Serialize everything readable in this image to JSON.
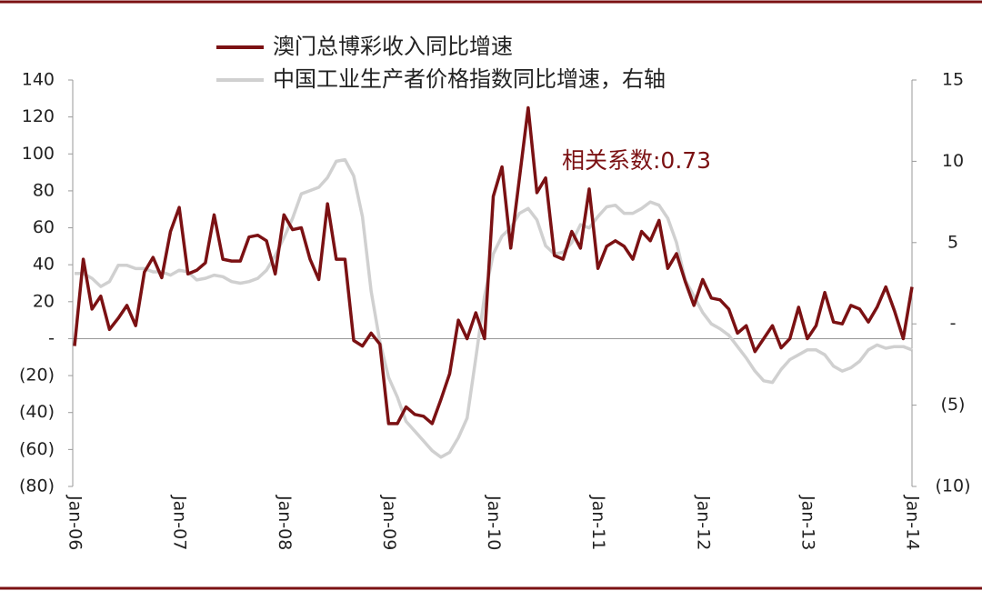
{
  "chart_data": {
    "type": "line",
    "annotation": "相关系数:0.73",
    "categories": [
      "Jan-06",
      null,
      null,
      null,
      null,
      null,
      null,
      null,
      null,
      null,
      null,
      null,
      "Jan-07",
      null,
      null,
      null,
      null,
      null,
      null,
      null,
      null,
      null,
      null,
      null,
      "Jan-08",
      null,
      null,
      null,
      null,
      null,
      null,
      null,
      null,
      null,
      null,
      null,
      "Jan-09",
      null,
      null,
      null,
      null,
      null,
      null,
      null,
      null,
      null,
      null,
      null,
      "Jan-10",
      null,
      null,
      null,
      null,
      null,
      null,
      null,
      null,
      null,
      null,
      null,
      "Jan-11",
      null,
      null,
      null,
      null,
      null,
      null,
      null,
      null,
      null,
      null,
      null,
      "Jan-12",
      null,
      null,
      null,
      null,
      null,
      null,
      null,
      null,
      null,
      null,
      null,
      "Jan-13",
      null,
      null,
      null,
      null,
      null,
      null,
      null,
      null,
      null,
      null,
      null,
      "Jan-14"
    ],
    "series": [
      {
        "name": "澳门总博彩收入同比增速",
        "color": "#7b1113",
        "axis": "y",
        "values": [
          -4,
          43,
          16,
          23,
          5,
          11,
          18,
          7,
          36,
          44,
          33,
          58,
          71,
          35,
          37,
          41,
          67,
          43,
          42,
          42,
          55,
          56,
          53,
          35,
          67,
          59,
          60,
          43,
          32,
          73,
          43,
          43,
          -1,
          -4,
          3,
          -3,
          -46,
          -46,
          -37,
          -41,
          -42,
          -46,
          -33,
          -19,
          10,
          0,
          14,
          0,
          77,
          93,
          49,
          87,
          125,
          79,
          87,
          45,
          43,
          58,
          49,
          81,
          38,
          50,
          53,
          50,
          43,
          58,
          53,
          64,
          38,
          46,
          31,
          18,
          32,
          22,
          21,
          16,
          3,
          7,
          -7,
          0,
          7,
          -5,
          0,
          17,
          0,
          7,
          25,
          9,
          8,
          18,
          16,
          9,
          17,
          28,
          15,
          0,
          28
        ]
      },
      {
        "name": "中国工业生产者价格指数同比增速，右轴",
        "color": "#d0d0d0",
        "axis": "y2",
        "values": [
          3.1,
          3.1,
          2.8,
          2.3,
          2.6,
          3.6,
          3.6,
          3.4,
          3.4,
          3.2,
          3.2,
          3.0,
          3.3,
          3.2,
          2.7,
          2.8,
          3.0,
          2.9,
          2.6,
          2.5,
          2.6,
          2.8,
          3.3,
          4.2,
          5.3,
          6.5,
          8.0,
          8.2,
          8.4,
          9.0,
          10.0,
          10.1,
          9.1,
          6.6,
          2.0,
          -1.1,
          -3.3,
          -4.5,
          -6.0,
          -6.6,
          -7.2,
          -7.8,
          -8.2,
          -7.9,
          -7.0,
          -5.8,
          -2.1,
          1.7,
          4.3,
          5.4,
          5.9,
          6.8,
          7.1,
          6.4,
          4.8,
          4.3,
          4.4,
          5.0,
          6.1,
          5.9,
          6.6,
          7.2,
          7.3,
          6.8,
          6.8,
          7.1,
          7.5,
          7.3,
          6.5,
          5.0,
          2.7,
          1.7,
          0.7,
          0.0,
          -0.3,
          -0.7,
          -1.4,
          -2.1,
          -2.9,
          -3.5,
          -3.6,
          -2.8,
          -2.2,
          -1.9,
          -1.6,
          -1.6,
          -1.9,
          -2.6,
          -2.9,
          -2.7,
          -2.3,
          -1.6,
          -1.3,
          -1.5,
          -1.4,
          -1.4,
          -1.6
        ]
      }
    ],
    "ylim": [
      -80,
      140
    ],
    "yticks": [
      140,
      120,
      100,
      80,
      60,
      40,
      20,
      {
        "value": 0,
        "label": "-"
      },
      {
        "value": -20,
        "label": "(20)"
      },
      {
        "value": -40,
        "label": "(40)"
      },
      {
        "value": -60,
        "label": "(60)"
      },
      {
        "value": -80,
        "label": "(80)"
      }
    ],
    "y2lim": [
      -10,
      15
    ],
    "y2ticks": [
      15,
      10,
      5,
      {
        "value": 0,
        "label": "-"
      },
      {
        "value": -5,
        "label": "(5)"
      },
      {
        "value": -10,
        "label": "(10)"
      }
    ],
    "grid": false
  }
}
